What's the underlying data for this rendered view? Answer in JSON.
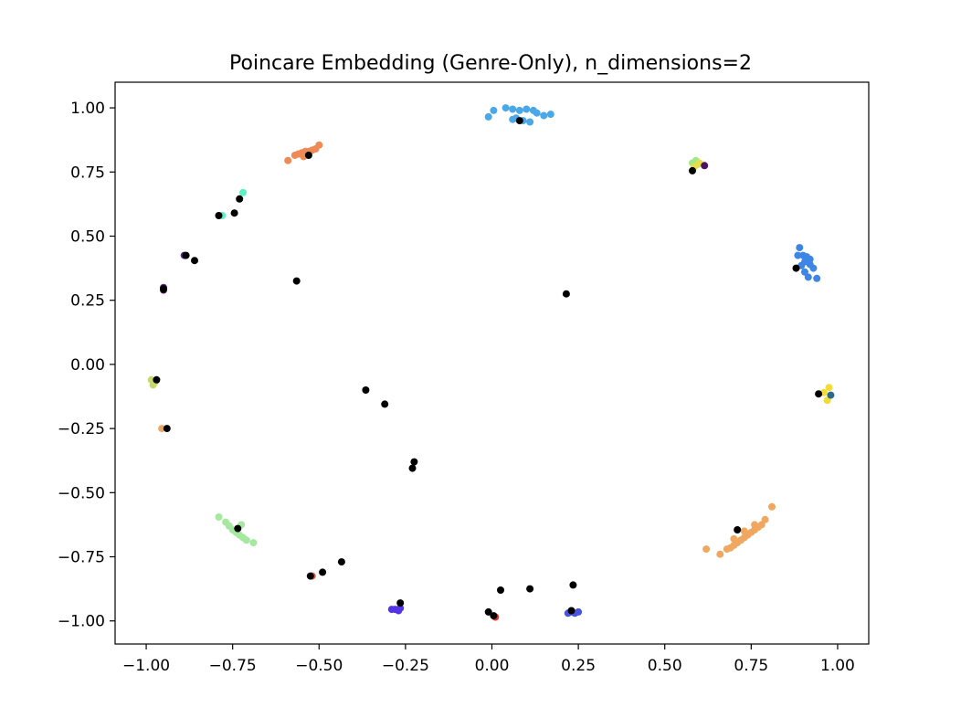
{
  "chart_data": {
    "type": "scatter",
    "title": "Poincare Embedding (Genre-Only), n_dimensions=2",
    "xlabel": "",
    "ylabel": "",
    "xlim": [
      -1.09,
      1.09
    ],
    "ylim": [
      -1.09,
      1.1
    ],
    "x_ticks": [
      -1.0,
      -0.75,
      -0.5,
      -0.25,
      0.0,
      0.25,
      0.5,
      0.75,
      1.0
    ],
    "x_tick_labels": [
      "−1.00",
      "−0.75",
      "−0.50",
      "−0.25",
      "0.00",
      "0.25",
      "0.50",
      "0.75",
      "1.00"
    ],
    "y_ticks": [
      1.0,
      0.75,
      0.5,
      0.25,
      0.0,
      -0.25,
      -0.5,
      -0.75,
      -1.0
    ],
    "y_tick_labels": [
      "1.00",
      "0.75",
      "0.50",
      "0.25",
      "0.00",
      "−0.25",
      "−0.50",
      "−0.75",
      "−1.00"
    ],
    "grid": false,
    "series": [
      {
        "color": "#4aa8e8",
        "points": [
          [
            -0.01,
            0.965
          ],
          [
            0.005,
            0.99
          ],
          [
            0.04,
            1.0
          ],
          [
            0.06,
            0.995
          ],
          [
            0.08,
            0.99
          ],
          [
            0.1,
            0.995
          ],
          [
            0.12,
            0.99
          ],
          [
            0.13,
            0.98
          ],
          [
            0.15,
            0.97
          ],
          [
            0.17,
            0.975
          ],
          [
            0.07,
            0.96
          ],
          [
            0.09,
            0.95
          ],
          [
            0.11,
            0.945
          ],
          [
            0.06,
            0.955
          ]
        ]
      },
      {
        "color": "#ee8a55",
        "points": [
          [
            -0.59,
            0.795
          ],
          [
            -0.57,
            0.815
          ],
          [
            -0.56,
            0.82
          ],
          [
            -0.55,
            0.825
          ],
          [
            -0.54,
            0.83
          ],
          [
            -0.53,
            0.83
          ],
          [
            -0.52,
            0.835
          ],
          [
            -0.51,
            0.84
          ],
          [
            -0.5,
            0.855
          ],
          [
            -0.545,
            0.81
          ]
        ]
      },
      {
        "color": "#a2e88a",
        "points": [
          [
            0.58,
            0.785
          ],
          [
            0.59,
            0.795
          ],
          [
            0.595,
            0.78
          ]
        ]
      },
      {
        "color": "#e8dc4a",
        "points": [
          [
            0.585,
            0.77
          ],
          [
            0.6,
            0.785
          ]
        ]
      },
      {
        "color": "#4b145f",
        "points": [
          [
            0.615,
            0.775
          ]
        ]
      },
      {
        "color": "#3e86e6",
        "points": [
          [
            0.89,
            0.455
          ],
          [
            0.885,
            0.425
          ],
          [
            0.9,
            0.425
          ],
          [
            0.91,
            0.42
          ],
          [
            0.92,
            0.41
          ],
          [
            0.905,
            0.4
          ],
          [
            0.92,
            0.39
          ],
          [
            0.93,
            0.375
          ],
          [
            0.905,
            0.36
          ],
          [
            0.915,
            0.34
          ],
          [
            0.94,
            0.335
          ],
          [
            0.895,
            0.385
          ]
        ]
      },
      {
        "color": "#5df0c5",
        "points": [
          [
            -0.72,
            0.67
          ],
          [
            -0.78,
            0.58
          ]
        ]
      },
      {
        "color": "#5a2a86",
        "points": [
          [
            -0.89,
            0.425
          ],
          [
            -0.95,
            0.3
          ]
        ]
      },
      {
        "color": "#3d1250",
        "points": [
          [
            -0.95,
            0.29
          ]
        ]
      },
      {
        "color": "#c8d870",
        "points": [
          [
            -0.985,
            -0.06
          ],
          [
            -0.98,
            -0.08
          ],
          [
            -0.975,
            -0.07
          ]
        ]
      },
      {
        "color": "#eaa868",
        "points": [
          [
            -0.955,
            -0.25
          ]
        ]
      },
      {
        "color": "#f2dc3a",
        "points": [
          [
            0.975,
            -0.09
          ],
          [
            0.97,
            -0.14
          ],
          [
            0.96,
            -0.11
          ]
        ]
      },
      {
        "color": "#2c6a8a",
        "points": [
          [
            0.98,
            -0.12
          ]
        ]
      },
      {
        "color": "#a6e8a0",
        "points": [
          [
            -0.79,
            -0.595
          ],
          [
            -0.77,
            -0.615
          ],
          [
            -0.76,
            -0.63
          ],
          [
            -0.75,
            -0.645
          ],
          [
            -0.74,
            -0.655
          ],
          [
            -0.73,
            -0.665
          ],
          [
            -0.72,
            -0.675
          ],
          [
            -0.71,
            -0.685
          ],
          [
            -0.69,
            -0.695
          ],
          [
            -0.725,
            -0.625
          ]
        ]
      },
      {
        "color": "#f0a860",
        "points": [
          [
            0.81,
            -0.555
          ],
          [
            0.79,
            -0.605
          ],
          [
            0.78,
            -0.625
          ],
          [
            0.77,
            -0.635
          ],
          [
            0.76,
            -0.645
          ],
          [
            0.75,
            -0.655
          ],
          [
            0.74,
            -0.665
          ],
          [
            0.73,
            -0.675
          ],
          [
            0.72,
            -0.685
          ],
          [
            0.71,
            -0.695
          ],
          [
            0.7,
            -0.705
          ],
          [
            0.69,
            -0.715
          ],
          [
            0.68,
            -0.72
          ],
          [
            0.66,
            -0.74
          ],
          [
            0.62,
            -0.72
          ],
          [
            0.7,
            -0.68
          ],
          [
            0.73,
            -0.65
          ],
          [
            0.76,
            -0.625
          ]
        ]
      },
      {
        "color": "#e05a3a",
        "points": [
          [
            -0.52,
            -0.825
          ]
        ]
      },
      {
        "color": "#5533e8",
        "points": [
          [
            -0.29,
            -0.955
          ],
          [
            -0.28,
            -0.955
          ],
          [
            -0.27,
            -0.96
          ],
          [
            -0.265,
            -0.95
          ],
          [
            -0.27,
            -0.955
          ]
        ]
      },
      {
        "color": "#e03828",
        "points": [
          [
            0.01,
            -0.985
          ]
        ]
      },
      {
        "color": "#4855e0",
        "points": [
          [
            0.22,
            -0.97
          ],
          [
            0.23,
            -0.965
          ],
          [
            0.24,
            -0.97
          ],
          [
            0.25,
            -0.965
          ]
        ]
      },
      {
        "color": "#000000",
        "points": [
          [
            0.08,
            0.95
          ],
          [
            -0.53,
            0.815
          ],
          [
            -0.73,
            0.645
          ],
          [
            -0.745,
            0.59
          ],
          [
            -0.79,
            0.58
          ],
          [
            -0.885,
            0.425
          ],
          [
            -0.86,
            0.405
          ],
          [
            -0.95,
            0.295
          ],
          [
            -0.565,
            0.325
          ],
          [
            0.215,
            0.275
          ],
          [
            0.58,
            0.755
          ],
          [
            0.88,
            0.375
          ],
          [
            0.945,
            -0.115
          ],
          [
            -0.97,
            -0.06
          ],
          [
            -0.94,
            -0.25
          ],
          [
            -0.365,
            -0.1
          ],
          [
            -0.31,
            -0.155
          ],
          [
            -0.225,
            -0.38
          ],
          [
            -0.23,
            -0.405
          ],
          [
            -0.735,
            -0.64
          ],
          [
            0.71,
            -0.645
          ],
          [
            -0.525,
            -0.825
          ],
          [
            -0.49,
            -0.81
          ],
          [
            -0.435,
            -0.77
          ],
          [
            -0.265,
            -0.93
          ],
          [
            -0.01,
            -0.965
          ],
          [
            0.005,
            -0.98
          ],
          [
            0.025,
            -0.88
          ],
          [
            0.11,
            -0.875
          ],
          [
            0.235,
            -0.86
          ],
          [
            0.23,
            -0.96
          ]
        ]
      }
    ]
  }
}
